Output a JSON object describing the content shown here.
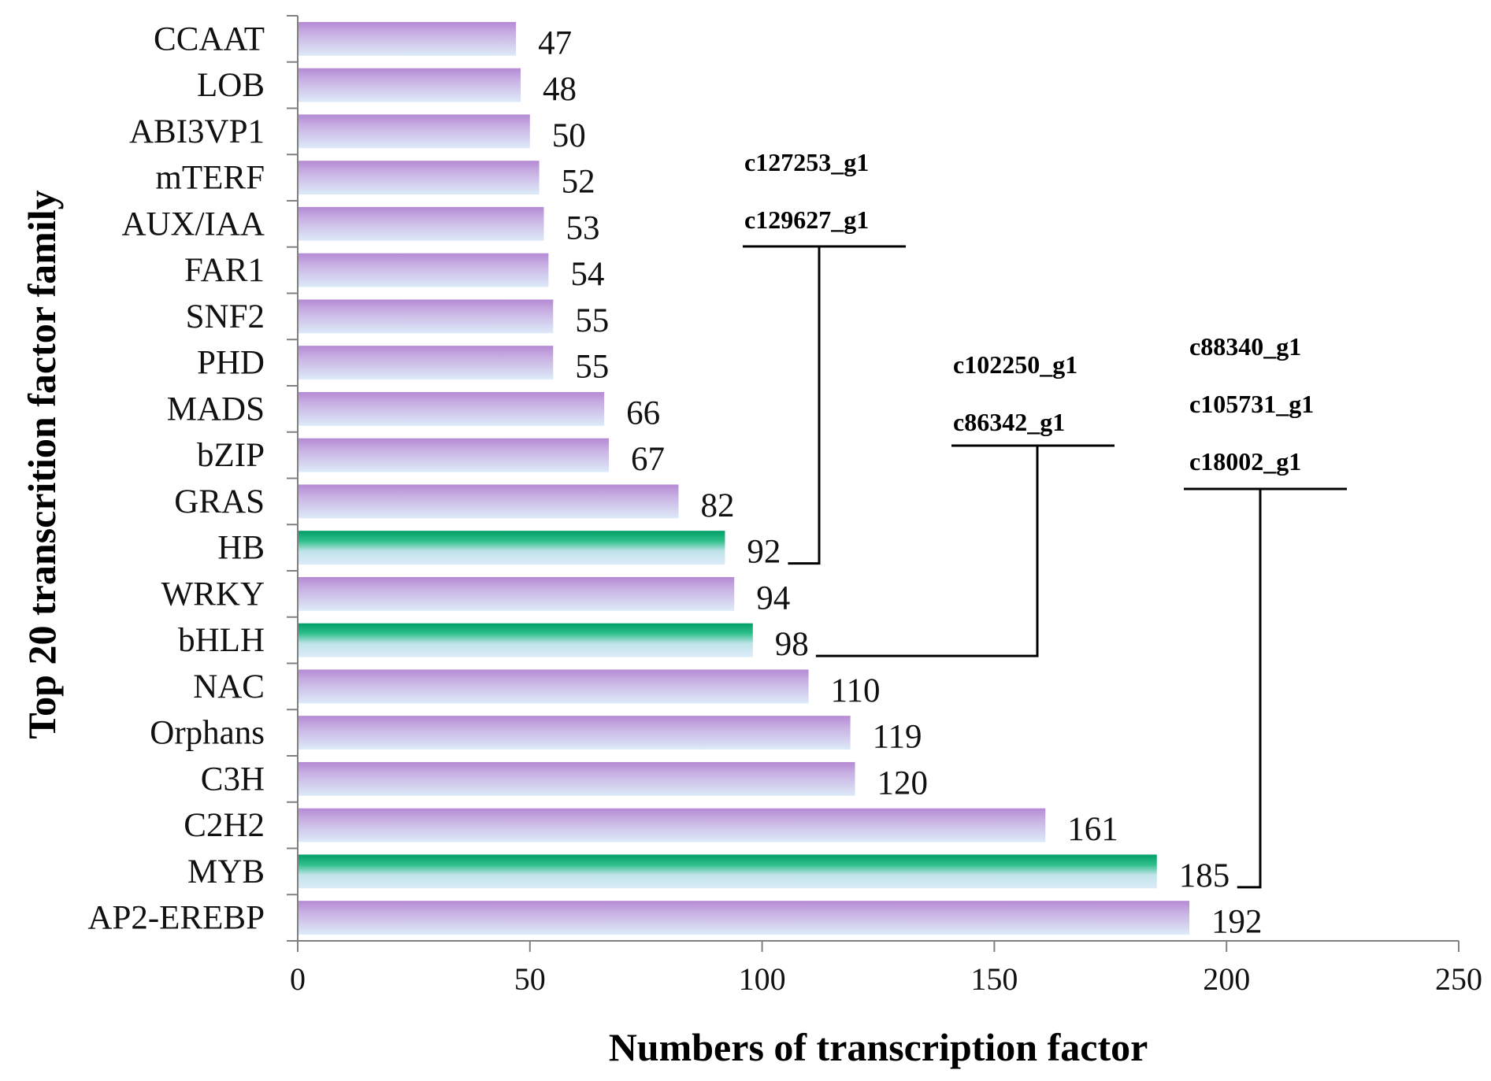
{
  "chart_data": {
    "type": "bar",
    "orientation": "horizontal",
    "title": "",
    "xlabel": "Numbers of transcription factor",
    "ylabel": "Top 20 transcrition factor family",
    "xlim": [
      0,
      250
    ],
    "xticks": [
      0,
      50,
      100,
      150,
      200,
      250
    ],
    "grid": false,
    "categories": [
      "CCAAT",
      "LOB",
      "ABI3VP1",
      "mTERF",
      "AUX/IAA",
      "FAR1",
      "SNF2",
      "PHD",
      "MADS",
      "bZIP",
      "GRAS",
      "HB",
      "WRKY",
      "bHLH",
      "NAC",
      "Orphans",
      "C3H",
      "C2H2",
      "MYB",
      "AP2-EREBP"
    ],
    "values": [
      47,
      48,
      50,
      52,
      53,
      54,
      55,
      55,
      66,
      67,
      82,
      92,
      94,
      98,
      110,
      119,
      120,
      161,
      185,
      192
    ],
    "highlighted": [
      "HB",
      "bHLH",
      "MYB"
    ],
    "annotations": [
      {
        "target": "HB",
        "genes": [
          "c127253_g1",
          "c129627_g1"
        ]
      },
      {
        "target": "bHLH",
        "genes": [
          "c102250_g1",
          "c86342_g1"
        ]
      },
      {
        "target": "MYB",
        "genes": [
          "c88340_g1",
          "c105731_g1",
          "c18002_g1"
        ]
      }
    ],
    "colors": {
      "normal_top": "#b88fd6",
      "normal_bottom": "#d6e6f7",
      "highlight_top": "#00a86b",
      "highlight_bottom": "#dcecf8",
      "axis": "#808080",
      "connector": "#000000"
    }
  }
}
